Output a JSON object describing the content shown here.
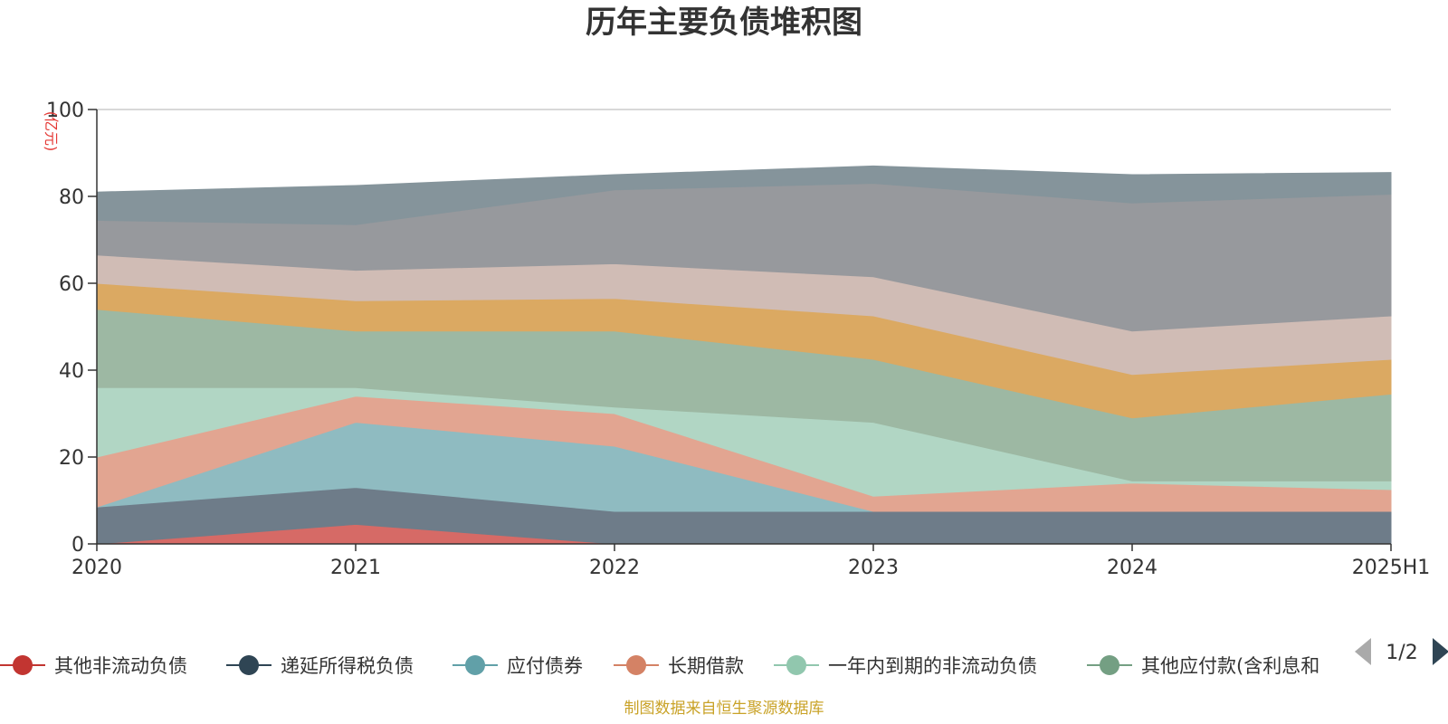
{
  "chart_data": {
    "type": "area",
    "stacked": true,
    "title": "历年主要负债堆积图",
    "unit_label": "(亿元)",
    "x": [
      "2020",
      "2021",
      "2022",
      "2023",
      "2024",
      "2025H1"
    ],
    "ylim": [
      0,
      100
    ],
    "yticks": [
      0,
      20,
      40,
      60,
      80,
      100
    ],
    "grid": true,
    "series": [
      {
        "name": "其他非流动负债",
        "color": "#d66a66",
        "values": [
          0,
          4.5,
          0,
          0,
          0,
          0
        ]
      },
      {
        "name": "递延所得税负债",
        "color": "#6e7c89",
        "values": [
          8.5,
          8.5,
          7.5,
          7.5,
          7.5,
          7.5
        ]
      },
      {
        "name": "应付债券",
        "color": "#8fbbc1",
        "values": [
          0,
          15,
          15,
          0,
          0,
          0
        ]
      },
      {
        "name": "长期借款",
        "color": "#e2a591",
        "values": [
          11.5,
          6,
          7.5,
          3.5,
          6.5,
          5
        ]
      },
      {
        "name": "一年内到期的非流动负债",
        "color": "#b1d6c4",
        "values": [
          16,
          2,
          1.5,
          17,
          0.5,
          2
        ]
      },
      {
        "name": "其他应付款(含利息和",
        "color": "#9db8a3",
        "values": [
          18,
          13,
          17.5,
          14.5,
          14.5,
          20
        ]
      },
      {
        "name": "",
        "color": "#dba962",
        "values": [
          6,
          7,
          7.5,
          10,
          10,
          8
        ]
      },
      {
        "name": "",
        "color": "#d0bcb5",
        "values": [
          6.5,
          7,
          8,
          9,
          10,
          10
        ]
      },
      {
        "name": "",
        "color": "#97999d",
        "values": [
          8,
          10.5,
          17,
          21.5,
          29.5,
          28
        ]
      },
      {
        "name": "",
        "color": "#85949b",
        "values": [
          6.5,
          9,
          3.5,
          4,
          6.5,
          5
        ]
      }
    ],
    "legend": {
      "position": "bottom",
      "page": "1/2"
    }
  },
  "source_note": "制图数据来自恒生聚源数据库"
}
